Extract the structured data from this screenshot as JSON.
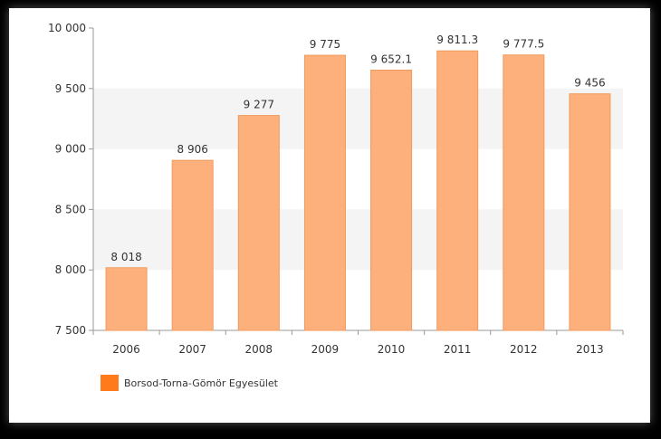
{
  "colors": {
    "bar_fill": "#fdb07c",
    "bar_stroke": "#f19a5a",
    "legend_swatch": "#ff7a1a",
    "band": "#f4f4f4",
    "axis": "#999999",
    "text": "#333333"
  },
  "chart_data": {
    "type": "bar",
    "categories": [
      "2006",
      "2007",
      "2008",
      "2009",
      "2010",
      "2011",
      "2012",
      "2013"
    ],
    "series": [
      {
        "name": "Borsod-Torna-Gömör Egyesület",
        "values": [
          8018,
          8906,
          9277,
          9775,
          9652.1,
          9811.3,
          9777.5,
          9456
        ],
        "labels": [
          "8 018",
          "8 906",
          "9 277",
          "9 775",
          "9 652.1",
          "9 811.3",
          "9 777.5",
          "9 456"
        ]
      }
    ],
    "yticks": [
      7500,
      8000,
      8500,
      9000,
      9500,
      10000
    ],
    "ytick_labels": [
      "7 500",
      "8 000",
      "8 500",
      "9 000",
      "9 500",
      "10 000"
    ],
    "ylim": [
      7500,
      10000
    ],
    "grid": "alternating horizontal bands",
    "legend_position": "bottom-left"
  }
}
